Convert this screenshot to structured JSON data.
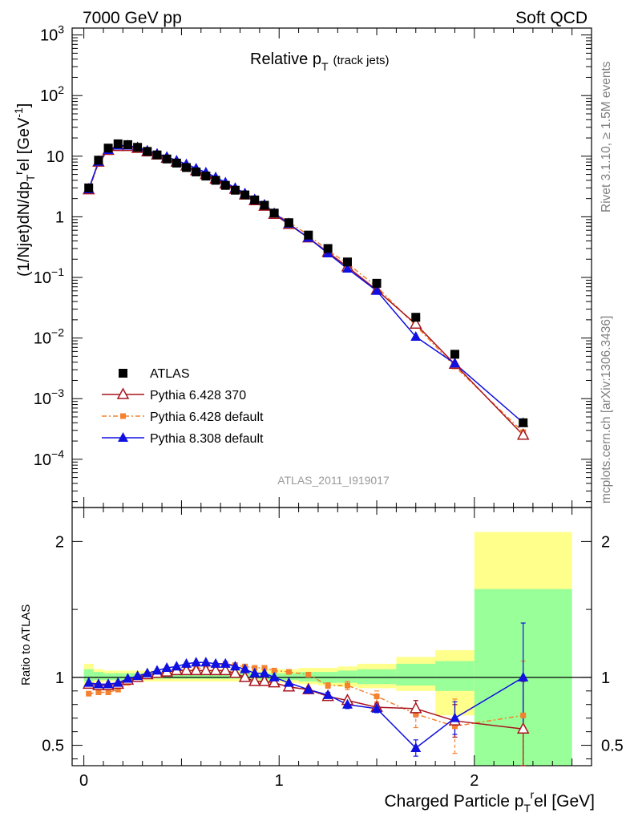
{
  "header": {
    "left": "7000 GeV pp",
    "right": "Soft QCD"
  },
  "side_labels": {
    "top": "Rivet 3.1.10, ≥ 1.5M events",
    "bottom": "mcplots.cern.ch [arXiv:1306.3436]"
  },
  "chart_data": [
    {
      "type": "scatter",
      "title_main": "Relative p",
      "title_sub": "T",
      "title_paren": "(track jets)",
      "analysis_id": "ATLAS_2011_I919017",
      "ylabel_parts": [
        "(1/Njet)dN/dp",
        "T",
        "r",
        "el [GeV",
        "-1",
        "]"
      ],
      "yscale": "log",
      "ylim": [
        1.6e-05,
        1300
      ],
      "xlim": [
        -0.06,
        2.6
      ],
      "ytick_labels": [
        {
          "mantissa": "10",
          "exp": "3",
          "value": 1000
        },
        {
          "mantissa": "10",
          "exp": "2",
          "value": 100
        },
        {
          "mantissa": "10",
          "exp": "",
          "value": 10
        },
        {
          "mantissa": "1",
          "exp": "",
          "value": 1
        },
        {
          "mantissa": "10",
          "exp": "−1",
          "value": 0.1
        },
        {
          "mantissa": "10",
          "exp": "−2",
          "value": 0.01
        },
        {
          "mantissa": "10",
          "exp": "−3",
          "value": 0.001
        },
        {
          "mantissa": "10",
          "exp": "−4",
          "value": 0.0001
        }
      ],
      "legend_position": "middle-left",
      "series": [
        {
          "name": "ATLAS",
          "color": "#000000",
          "marker": "square",
          "x": [
            0.025,
            0.075,
            0.125,
            0.175,
            0.225,
            0.275,
            0.325,
            0.375,
            0.425,
            0.475,
            0.525,
            0.575,
            0.625,
            0.675,
            0.725,
            0.775,
            0.825,
            0.875,
            0.925,
            0.975,
            1.05,
            1.15,
            1.25,
            1.35,
            1.5,
            1.7,
            1.9,
            2.25
          ],
          "y": [
            3.0,
            8.6,
            13.6,
            16.0,
            15.5,
            14.0,
            12.0,
            10.5,
            9.0,
            7.7,
            6.5,
            5.5,
            4.7,
            4.0,
            3.3,
            2.75,
            2.3,
            1.9,
            1.55,
            1.15,
            0.8,
            0.5,
            0.3,
            0.18,
            0.08,
            0.022,
            0.0054,
            0.0004
          ]
        },
        {
          "name": "Pythia 6.428 370",
          "color": "#a8141e",
          "marker": "triangle-open",
          "x": [
            0.025,
            0.075,
            0.125,
            0.175,
            0.225,
            0.275,
            0.325,
            0.375,
            0.425,
            0.475,
            0.525,
            0.575,
            0.625,
            0.675,
            0.725,
            0.775,
            0.825,
            0.875,
            0.925,
            0.975,
            1.05,
            1.15,
            1.25,
            1.35,
            1.5,
            1.7,
            1.9,
            2.25
          ],
          "y": [
            2.8,
            8.0,
            12.5,
            14.5,
            14.5,
            13.5,
            11.8,
            10.5,
            9.3,
            8.0,
            6.9,
            5.8,
            5.0,
            4.2,
            3.5,
            2.85,
            2.3,
            1.85,
            1.5,
            1.1,
            0.75,
            0.45,
            0.26,
            0.15,
            0.062,
            0.017,
            0.0037,
            0.00025
          ]
        },
        {
          "name": "Pythia 6.428 default",
          "color": "#f4812d",
          "marker": "square-small",
          "x": [
            0.025,
            0.075,
            0.125,
            0.175,
            0.225,
            0.275,
            0.325,
            0.375,
            0.425,
            0.475,
            0.525,
            0.575,
            0.625,
            0.675,
            0.725,
            0.775,
            0.825,
            0.875,
            0.925,
            0.975,
            1.05,
            1.15,
            1.25,
            1.35,
            1.5,
            1.7,
            1.9,
            2.25
          ],
          "y": [
            2.65,
            7.7,
            12.0,
            14.5,
            14.6,
            13.6,
            12.0,
            10.6,
            9.3,
            8.0,
            6.8,
            5.8,
            5.0,
            4.2,
            3.5,
            2.9,
            2.4,
            1.95,
            1.6,
            1.15,
            0.82,
            0.5,
            0.28,
            0.17,
            0.07,
            0.016,
            0.0034,
            0.00028
          ]
        },
        {
          "name": "Pythia 8.308 default",
          "color": "#1010e0",
          "marker": "triangle",
          "x": [
            0.025,
            0.075,
            0.125,
            0.175,
            0.225,
            0.275,
            0.325,
            0.375,
            0.425,
            0.475,
            0.525,
            0.575,
            0.625,
            0.675,
            0.725,
            0.775,
            0.825,
            0.875,
            0.925,
            0.975,
            1.05,
            1.15,
            1.25,
            1.35,
            1.5,
            1.7,
            1.9,
            2.25
          ],
          "y": [
            2.85,
            8.1,
            12.7,
            15.0,
            15.0,
            14.0,
            12.4,
            11.0,
            9.8,
            8.5,
            7.4,
            6.3,
            5.4,
            4.5,
            3.7,
            3.0,
            2.45,
            1.95,
            1.6,
            1.15,
            0.77,
            0.45,
            0.25,
            0.14,
            0.06,
            0.0105,
            0.0038,
            0.0004
          ]
        }
      ]
    },
    {
      "type": "scatter",
      "ylabel": "Ratio to ATLAS",
      "xlabel_parts": [
        "Charged Particle p",
        "T",
        "r",
        "el [GeV]"
      ],
      "ylim": [
        0.35,
        2.25
      ],
      "ytick_labels": [
        "0.5",
        "1",
        "2"
      ],
      "ytick_values": [
        0.5,
        1,
        2
      ],
      "xtick_labels": [
        "0",
        "1",
        "2"
      ],
      "xtick_values": [
        0,
        1,
        2
      ],
      "reference_line": 1,
      "bands": {
        "bins": [
          [
            0,
            0.05
          ],
          [
            0.05,
            0.1
          ],
          [
            0.1,
            0.15
          ],
          [
            0.15,
            0.2
          ],
          [
            0.2,
            0.3
          ],
          [
            0.3,
            0.4
          ],
          [
            0.4,
            0.5
          ],
          [
            0.5,
            0.6
          ],
          [
            0.6,
            0.7
          ],
          [
            0.7,
            0.8
          ],
          [
            0.8,
            0.9
          ],
          [
            0.9,
            1.0
          ],
          [
            1.0,
            1.1
          ],
          [
            1.1,
            1.2
          ],
          [
            1.2,
            1.3
          ],
          [
            1.3,
            1.4
          ],
          [
            1.4,
            1.6
          ],
          [
            1.6,
            1.8
          ],
          [
            1.8,
            2.0
          ],
          [
            2.0,
            2.5
          ]
        ],
        "yellow_color": "#ffff8c",
        "green_color": "#99ff99",
        "yellow": [
          [
            0.94,
            1.1
          ],
          [
            0.96,
            1.06
          ],
          [
            0.97,
            1.05
          ],
          [
            0.97,
            1.05
          ],
          [
            0.97,
            1.05
          ],
          [
            0.97,
            1.05
          ],
          [
            0.97,
            1.05
          ],
          [
            0.97,
            1.05
          ],
          [
            0.97,
            1.05
          ],
          [
            0.97,
            1.05
          ],
          [
            0.97,
            1.05
          ],
          [
            0.97,
            1.06
          ],
          [
            0.96,
            1.06
          ],
          [
            0.95,
            1.07
          ],
          [
            0.94,
            1.07
          ],
          [
            0.93,
            1.08
          ],
          [
            0.92,
            1.1
          ],
          [
            0.9,
            1.15
          ],
          [
            0.72,
            1.2
          ],
          [
            0.35,
            2.07
          ]
        ],
        "green": [
          [
            0.97,
            1.06
          ],
          [
            0.98,
            1.04
          ],
          [
            0.98,
            1.03
          ],
          [
            0.98,
            1.03
          ],
          [
            0.98,
            1.03
          ],
          [
            0.99,
            1.03
          ],
          [
            0.99,
            1.03
          ],
          [
            0.99,
            1.03
          ],
          [
            0.99,
            1.03
          ],
          [
            0.99,
            1.03
          ],
          [
            0.99,
            1.03
          ],
          [
            0.98,
            1.03
          ],
          [
            0.98,
            1.03
          ],
          [
            0.97,
            1.04
          ],
          [
            0.96,
            1.04
          ],
          [
            0.96,
            1.05
          ],
          [
            0.95,
            1.06
          ],
          [
            0.94,
            1.1
          ],
          [
            0.9,
            1.12
          ],
          [
            0.35,
            1.65
          ]
        ]
      },
      "series": [
        {
          "name": "Pythia 6.428 370",
          "color": "#a8141e",
          "marker": "triangle-open",
          "x": [
            0.025,
            0.075,
            0.125,
            0.175,
            0.225,
            0.275,
            0.325,
            0.375,
            0.425,
            0.475,
            0.525,
            0.575,
            0.625,
            0.675,
            0.725,
            0.775,
            0.825,
            0.875,
            0.925,
            0.975,
            1.05,
            1.15,
            1.25,
            1.35,
            1.5,
            1.7,
            1.9,
            2.25
          ],
          "y": [
            0.95,
            0.94,
            0.94,
            0.95,
            0.98,
            1.0,
            1.02,
            1.03,
            1.04,
            1.05,
            1.05,
            1.05,
            1.05,
            1.05,
            1.05,
            1.03,
            1.0,
            0.97,
            0.97,
            0.96,
            0.93,
            0.91,
            0.86,
            0.83,
            0.78,
            0.77,
            0.68,
            0.62
          ],
          "err": [
            0.01,
            0.01,
            0.01,
            0.01,
            0.01,
            0.01,
            0.01,
            0.01,
            0.01,
            0.01,
            0.01,
            0.01,
            0.01,
            0.01,
            0.01,
            0.01,
            0.01,
            0.01,
            0.01,
            0.01,
            0.01,
            0.01,
            0.02,
            0.02,
            0.03,
            0.06,
            0.12,
            0.35
          ]
        },
        {
          "name": "Pythia 6.428 default",
          "color": "#f4812d",
          "marker": "square-small",
          "x": [
            0.025,
            0.075,
            0.125,
            0.175,
            0.225,
            0.275,
            0.325,
            0.375,
            0.425,
            0.475,
            0.525,
            0.575,
            0.625,
            0.675,
            0.725,
            0.775,
            0.825,
            0.875,
            0.925,
            0.975,
            1.05,
            1.15,
            1.25,
            1.35,
            1.5,
            1.7,
            1.9,
            2.25
          ],
          "y": [
            0.88,
            0.89,
            0.89,
            0.91,
            0.96,
            1.0,
            1.02,
            1.03,
            1.05,
            1.06,
            1.06,
            1.06,
            1.08,
            1.09,
            1.1,
            1.09,
            1.08,
            1.07,
            1.07,
            1.05,
            1.04,
            1.02,
            0.94,
            0.94,
            0.86,
            0.73,
            0.64,
            0.72
          ],
          "err": [
            0.01,
            0.01,
            0.01,
            0.01,
            0.01,
            0.01,
            0.01,
            0.01,
            0.01,
            0.01,
            0.01,
            0.01,
            0.01,
            0.01,
            0.01,
            0.01,
            0.01,
            0.01,
            0.01,
            0.01,
            0.01,
            0.01,
            0.02,
            0.03,
            0.04,
            0.1,
            0.2,
            0.4
          ]
        },
        {
          "name": "Pythia 8.308 default",
          "color": "#1010e0",
          "marker": "triangle",
          "x": [
            0.025,
            0.075,
            0.125,
            0.175,
            0.225,
            0.275,
            0.325,
            0.375,
            0.425,
            0.475,
            0.525,
            0.575,
            0.625,
            0.675,
            0.725,
            0.775,
            0.825,
            0.875,
            0.925,
            0.975,
            1.05,
            1.15,
            1.25,
            1.35,
            1.5,
            1.7,
            1.9,
            2.25
          ],
          "y": [
            0.96,
            0.95,
            0.95,
            0.96,
            0.99,
            1.01,
            1.03,
            1.05,
            1.07,
            1.08,
            1.1,
            1.11,
            1.11,
            1.1,
            1.1,
            1.08,
            1.06,
            1.03,
            1.03,
            1.0,
            0.96,
            0.91,
            0.87,
            0.8,
            0.77,
            0.48,
            0.7,
            1.0
          ],
          "err": [
            0.01,
            0.01,
            0.01,
            0.01,
            0.01,
            0.01,
            0.01,
            0.01,
            0.01,
            0.01,
            0.01,
            0.01,
            0.01,
            0.01,
            0.01,
            0.01,
            0.01,
            0.01,
            0.01,
            0.01,
            0.01,
            0.01,
            0.02,
            0.03,
            0.03,
            0.06,
            0.12,
            0.4
          ]
        }
      ]
    }
  ]
}
